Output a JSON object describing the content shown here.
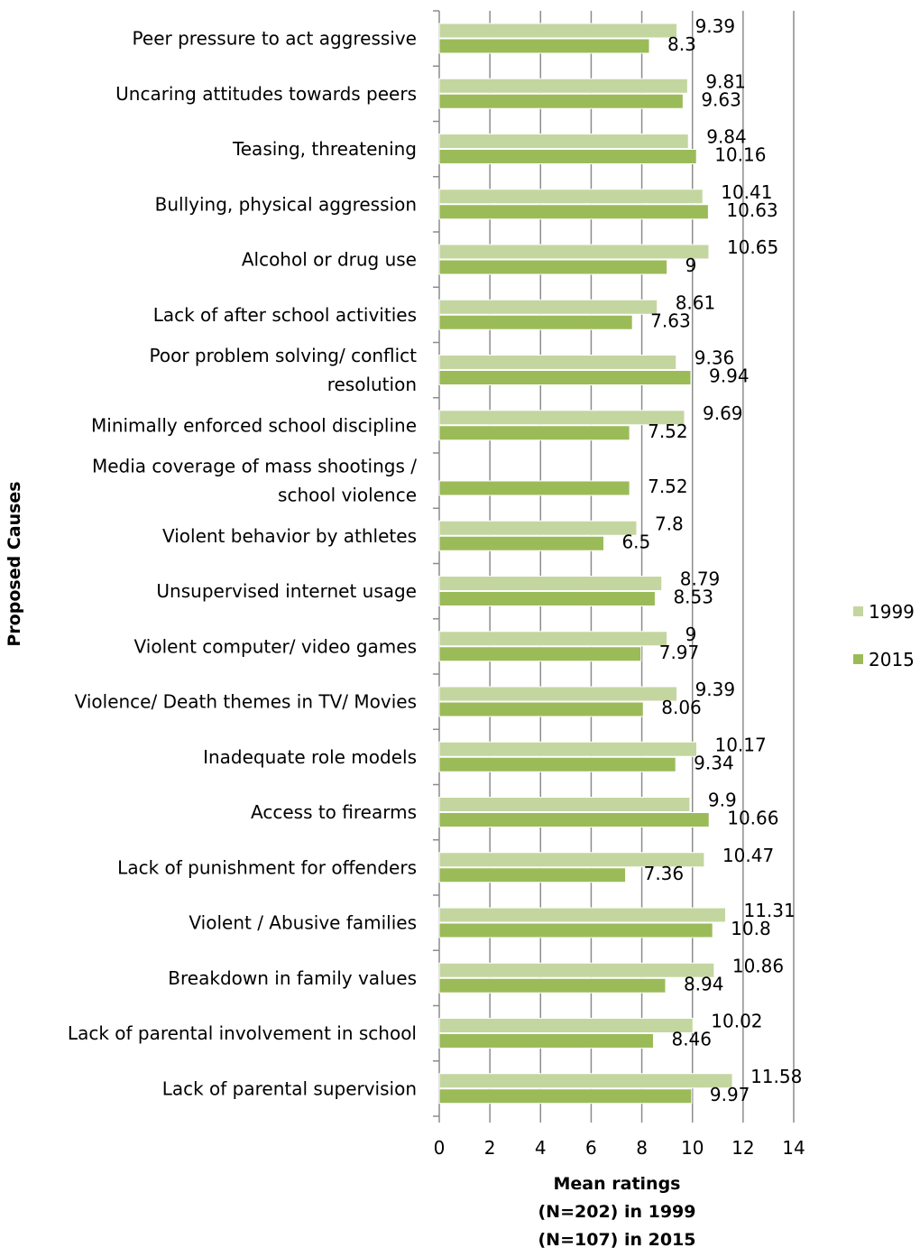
{
  "chart_data": {
    "type": "bar",
    "orientation": "horizontal",
    "categories": [
      "Peer pressure to act aggressive",
      "Uncaring attitudes towards peers",
      "Teasing, threatening",
      "Bullying, physical aggression",
      "Alcohol or drug use",
      "Lack of after school activities",
      "Poor problem solving/ conflict\nresolution",
      "Minimally enforced school discipline",
      "Media coverage of mass shootings /\nschool violence",
      "Violent behavior by athletes",
      "Unsupervised internet usage",
      "Violent computer/ video games",
      "Violence/ Death themes in TV/ Movies",
      "Inadequate role models",
      "Access to firearms",
      "Lack of punishment for offenders",
      "Violent / Abusive families",
      "Breakdown in family values",
      "Lack of parental involvement in school",
      "Lack of parental supervision"
    ],
    "series": [
      {
        "name": "1999",
        "color": "#c4d6a0",
        "values": [
          9.39,
          9.81,
          9.84,
          10.41,
          10.65,
          8.61,
          9.36,
          9.69,
          null,
          7.8,
          8.79,
          9,
          9.39,
          10.17,
          9.9,
          10.47,
          11.31,
          10.86,
          10.02,
          11.58
        ]
      },
      {
        "name": "2015",
        "color": "#9bbb59",
        "values": [
          8.3,
          9.63,
          10.16,
          10.63,
          9,
          7.63,
          9.94,
          7.52,
          7.52,
          6.5,
          8.53,
          7.97,
          8.06,
          9.34,
          10.66,
          7.36,
          10.8,
          8.94,
          8.46,
          9.97
        ]
      }
    ],
    "xlim": [
      0,
      14
    ],
    "xticks": [
      0,
      2,
      4,
      6,
      8,
      10,
      12,
      14
    ],
    "grid": true,
    "x_label": "Mean ratings\n(N=202) in 1999\n(N=107) in 2015",
    "y_label": "Proposed Causes",
    "legend": "right"
  }
}
